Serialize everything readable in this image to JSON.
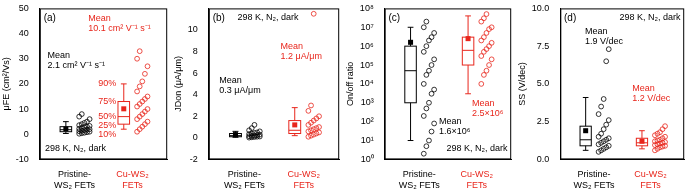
{
  "chart_data": [
    {
      "type": "box",
      "panel": "(a)",
      "y_label": "μFE (cm²/Vs)",
      "ylim": [
        -10,
        50
      ],
      "yticks": [
        -10,
        0,
        10,
        20,
        30,
        40,
        50
      ],
      "categories": [
        [
          "Pristine-",
          "WS₂ FETs"
        ],
        [
          "Cu-WS₂",
          "FETs"
        ]
      ],
      "annotation": "298 K, N₂, dark",
      "percentile_labels": [
        "90%",
        "75%",
        "50%",
        "25%",
        "10%"
      ],
      "series": [
        {
          "color": "#000000",
          "p10": 0.3,
          "q1": 1.0,
          "median": 1.8,
          "q3": 3.0,
          "p90": 5.0,
          "mean": 2.1,
          "mean_label": [
            "Mean",
            "2.1 cm² V⁻¹ s⁻¹"
          ],
          "points": [
            0.2,
            0.4,
            0.6,
            0.8,
            1.0,
            1.2,
            1.4,
            1.6,
            1.8,
            2.0,
            2.2,
            2.5,
            2.8,
            3.0,
            3.3,
            3.6,
            4.0,
            4.5,
            5.0,
            6.0,
            7.0,
            8.0
          ]
        },
        {
          "color": "#e8261c",
          "p10": 2.0,
          "q1": 4.0,
          "median": 7.0,
          "q3": 13.0,
          "p90": 20.0,
          "mean": 10.1,
          "mean_label": [
            "Mean",
            "10.1 cm² V⁻¹ s⁻¹"
          ],
          "points": [
            1,
            2,
            3,
            4,
            5,
            6,
            7,
            8,
            9,
            10,
            11,
            12,
            13,
            14,
            15,
            17,
            19,
            21,
            24,
            27,
            30,
            33
          ]
        }
      ]
    },
    {
      "type": "box",
      "panel": "(b)",
      "y_label": "JDon (μA/μm)",
      "ylim": [
        -2,
        12
      ],
      "yticks": [
        -2,
        0,
        2,
        4,
        6,
        8,
        10
      ],
      "categories": [
        [
          "Pristine-",
          "WS₂ FETs"
        ],
        [
          "Cu-WS₂",
          "FETs"
        ]
      ],
      "annotation": "298 K, N₂, dark",
      "series": [
        {
          "color": "#000000",
          "p10": 0.05,
          "q1": 0.1,
          "median": 0.2,
          "q3": 0.4,
          "p90": 0.6,
          "mean": 0.3,
          "mean_label": [
            "Mean",
            "0.3 μA/μm"
          ],
          "points": [
            0.02,
            0.05,
            0.08,
            0.1,
            0.12,
            0.15,
            0.18,
            0.2,
            0.25,
            0.3,
            0.35,
            0.4,
            0.45,
            0.5,
            0.6,
            0.7,
            0.9,
            1.2
          ]
        },
        {
          "color": "#e8261c",
          "p10": 0.2,
          "q1": 0.4,
          "median": 0.7,
          "q3": 1.6,
          "p90": 2.8,
          "mean": 1.2,
          "mean_label": [
            "Mean",
            "1.2 μA/μm"
          ],
          "points": [
            0.1,
            0.2,
            0.3,
            0.4,
            0.5,
            0.6,
            0.7,
            0.8,
            0.9,
            1.0,
            1.2,
            1.4,
            1.6,
            1.8,
            2.0,
            2.5,
            3.0,
            11.5
          ]
        }
      ]
    },
    {
      "type": "box",
      "panel": "(c)",
      "y_label": "On/off ratio",
      "log": "y",
      "ylim": [
        1,
        100000000
      ],
      "yticks": [
        {
          "value": 1,
          "label": "10⁰"
        },
        {
          "value": 10,
          "label": "10¹"
        },
        {
          "value": 100,
          "label": "10²"
        },
        {
          "value": 1000,
          "label": "10³"
        },
        {
          "value": 10000,
          "label": "10⁴"
        },
        {
          "value": 100000,
          "label": "10⁵"
        },
        {
          "value": 1000000,
          "label": "10⁶"
        },
        {
          "value": 10000000,
          "label": "10⁷"
        },
        {
          "value": 100000000,
          "label": "10⁸"
        }
      ],
      "categories": [
        [
          "Pristine-",
          "WS₂ FETs"
        ],
        [
          "Cu-WS₂",
          "FETs"
        ]
      ],
      "annotation": "298 K, N₂, dark",
      "series": [
        {
          "color": "#000000",
          "p10": 10,
          "q1": 1000,
          "median": 50000,
          "q3": 1000000,
          "p90": 10000000,
          "mean": 1600000,
          "mean_label": [
            "Mean",
            "1.6×10⁶"
          ],
          "points": [
            2,
            5,
            10,
            30,
            80,
            200,
            500,
            1000,
            3000,
            5000,
            10000,
            30000,
            50000,
            100000,
            200000,
            500000,
            1000000,
            2000000,
            3000000,
            5000000,
            10000000,
            20000000
          ]
        },
        {
          "color": "#e8261c",
          "p10": 3000,
          "q1": 100000,
          "median": 600000,
          "q3": 3000000,
          "p90": 40000000,
          "mean": 2500000,
          "mean_label": [
            "Mean",
            "2.5×10⁶"
          ],
          "points": [
            10000,
            30000,
            50000,
            100000,
            200000,
            300000,
            500000,
            700000,
            1000000,
            1500000,
            2000000,
            3000000,
            5000000,
            8000000,
            10000000,
            20000000,
            30000000,
            50000000
          ]
        }
      ]
    },
    {
      "type": "box",
      "panel": "(d)",
      "y_label": "SS (V/dec)",
      "ylim": [
        0,
        10
      ],
      "yticks": [
        {
          "value": 0,
          "label": "0.0"
        },
        {
          "value": 2.5,
          "label": "2.5"
        },
        {
          "value": 5,
          "label": "5.0"
        },
        {
          "value": 7.5,
          "label": "7.5"
        },
        {
          "value": 10,
          "label": "10.0"
        }
      ],
      "categories": [
        [
          "Pristine-",
          "WS₂ FETs"
        ],
        [
          "Cu-WS₂",
          "FETs"
        ]
      ],
      "annotation": "298 K, N₂, dark",
      "series": [
        {
          "color": "#000000",
          "p10": 0.6,
          "q1": 0.9,
          "median": 1.3,
          "q3": 2.2,
          "p90": 4.1,
          "mean": 1.9,
          "mean_label": [
            "Mean",
            "1.9 V/dec"
          ],
          "points": [
            0.5,
            0.6,
            0.7,
            0.8,
            0.9,
            1.0,
            1.1,
            1.2,
            1.3,
            1.4,
            1.5,
            1.7,
            2.0,
            2.3,
            2.6,
            3.0,
            3.5,
            4.0,
            6.5,
            7.3
          ]
        },
        {
          "color": "#e8261c",
          "p10": 0.7,
          "q1": 0.9,
          "median": 1.1,
          "q3": 1.4,
          "p90": 1.9,
          "mean": 1.2,
          "mean_label": [
            "Mean",
            "1.2 V/dec"
          ],
          "points": [
            0.6,
            0.7,
            0.8,
            0.85,
            0.9,
            0.95,
            1.0,
            1.05,
            1.1,
            1.15,
            1.2,
            1.25,
            1.3,
            1.4,
            1.5,
            1.6,
            1.7,
            1.8,
            2.0,
            2.2
          ]
        }
      ]
    }
  ]
}
